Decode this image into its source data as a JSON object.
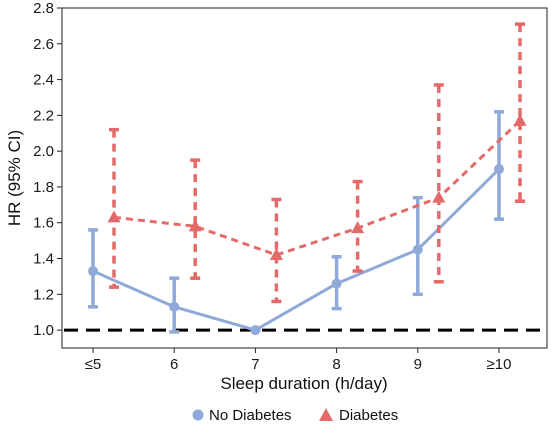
{
  "chart_data": {
    "type": "line",
    "xlabel": "Sleep duration (h/day)",
    "ylabel": "HR (95% CI)",
    "categories": [
      "≤5",
      "6",
      "7",
      "8",
      "9",
      "≥10"
    ],
    "ylim": [
      0.9,
      2.8
    ],
    "yticks": [
      1.0,
      1.2,
      1.4,
      1.6,
      1.8,
      2.0,
      2.2,
      2.4,
      2.6,
      2.8
    ],
    "ytick_labels": [
      "1.0",
      "1.2",
      "1.4",
      "1.6",
      "1.8",
      "2.0",
      "2.2",
      "2.4",
      "2.6",
      "2.8"
    ],
    "reference_line": 1.0,
    "grid": false,
    "legend_position": "bottom",
    "series": [
      {
        "name": "No Diabetes",
        "color": "#8faad8",
        "marker": "circle",
        "line_style": "solid",
        "values": [
          1.33,
          1.13,
          1.0,
          1.26,
          1.45,
          1.9
        ],
        "lower": [
          1.13,
          0.99,
          1.0,
          1.12,
          1.2,
          1.62
        ],
        "upper": [
          1.56,
          1.29,
          1.0,
          1.41,
          1.74,
          2.22
        ]
      },
      {
        "name": "Diabetes",
        "color": "#e46a6a",
        "marker": "triangle",
        "line_style": "dashed",
        "values": [
          1.63,
          1.58,
          1.42,
          1.57,
          1.74,
          2.17
        ],
        "lower": [
          1.24,
          1.29,
          1.16,
          1.33,
          1.27,
          1.72
        ],
        "upper": [
          2.12,
          1.95,
          1.73,
          1.83,
          2.37,
          2.71
        ]
      }
    ]
  }
}
